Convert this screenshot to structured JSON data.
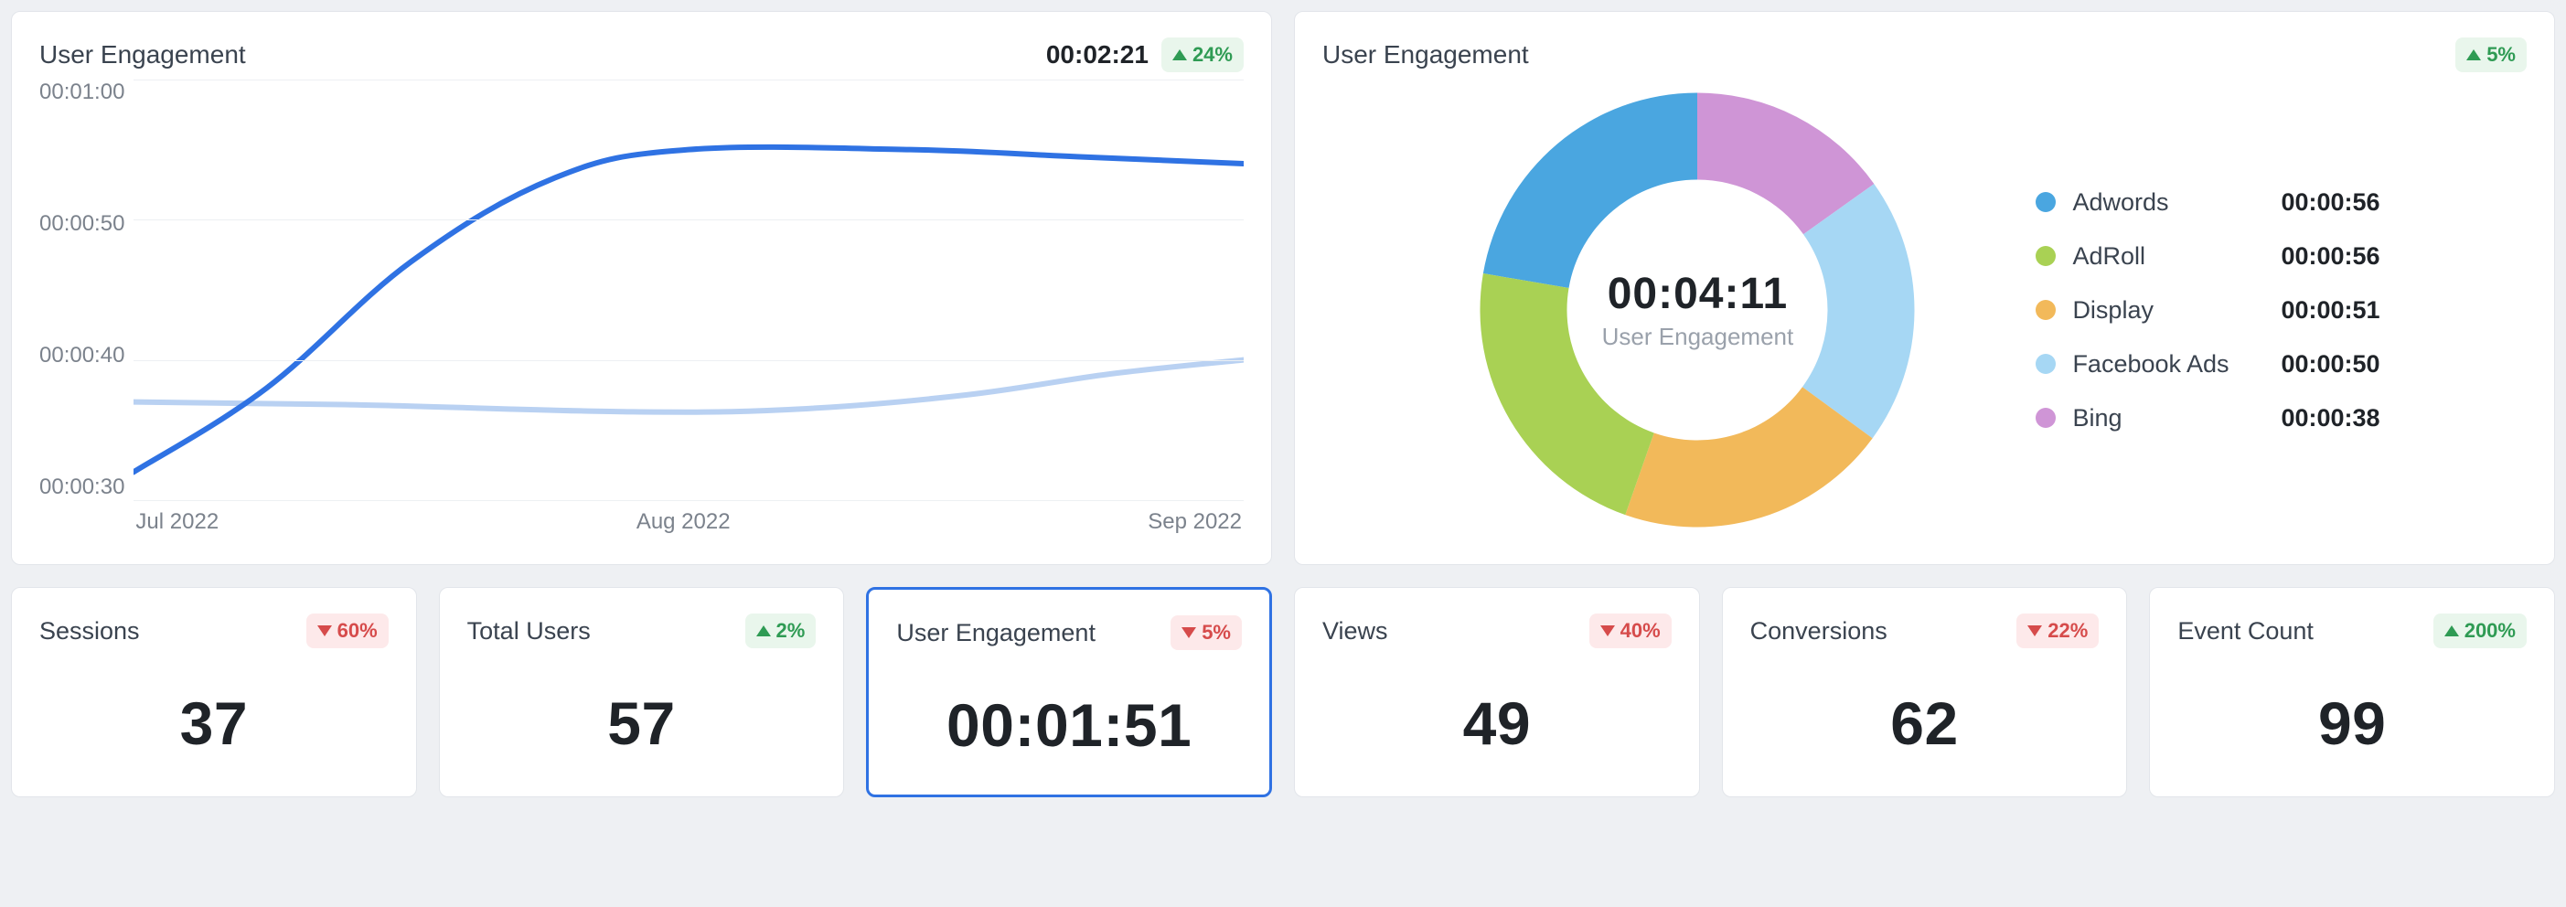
{
  "palette": {
    "background": "#eef0f3",
    "card_bg": "#ffffff",
    "card_border": "#e2e5ea",
    "text_primary": "#1f2328",
    "text_secondary": "#3a434f",
    "text_muted": "#7b828c",
    "gridline": "#edf0f3",
    "badge_up_bg": "#e9f6ec",
    "badge_up_fg": "#2f9b54",
    "badge_down_bg": "#fde9ea",
    "badge_down_fg": "#d64b4b",
    "selected_border": "#2f72e3"
  },
  "line_chart": {
    "title": "User Engagement",
    "head_value": "00:02:21",
    "badge": {
      "direction": "up",
      "text": "24%"
    },
    "y_ticks": [
      "00:01:00",
      "00:00:50",
      "00:00:40",
      "00:00:30"
    ],
    "y_range_seconds": [
      30,
      60
    ],
    "x_ticks": [
      "Jul 2022",
      "Aug 2022",
      "Sep 2022"
    ],
    "series": [
      {
        "name": "current",
        "color": "#2f72e3",
        "stroke_width": 6,
        "points": [
          {
            "x": 0.0,
            "y": 32
          },
          {
            "x": 0.12,
            "y": 38
          },
          {
            "x": 0.25,
            "y": 47
          },
          {
            "x": 0.38,
            "y": 53
          },
          {
            "x": 0.5,
            "y": 55
          },
          {
            "x": 0.7,
            "y": 55
          },
          {
            "x": 0.85,
            "y": 54.5
          },
          {
            "x": 1.0,
            "y": 54
          }
        ]
      },
      {
        "name": "previous",
        "color": "#b9d1f2",
        "stroke_width": 6,
        "points": [
          {
            "x": 0.0,
            "y": 37
          },
          {
            "x": 0.2,
            "y": 36.8
          },
          {
            "x": 0.45,
            "y": 36.3
          },
          {
            "x": 0.6,
            "y": 36.5
          },
          {
            "x": 0.75,
            "y": 37.5
          },
          {
            "x": 0.88,
            "y": 39
          },
          {
            "x": 1.0,
            "y": 40
          }
        ]
      }
    ]
  },
  "donut": {
    "title": "User Engagement",
    "badge": {
      "direction": "up",
      "text": "5%"
    },
    "center_value": "00:04:11",
    "center_label": "User Engagement",
    "inner_radius_ratio": 0.6,
    "segments": [
      {
        "label": "Adwords",
        "value": "00:00:56",
        "seconds": 56,
        "color": "#4aa6e0"
      },
      {
        "label": "AdRoll",
        "value": "00:00:56",
        "seconds": 56,
        "color": "#a9d154"
      },
      {
        "label": "Display",
        "value": "00:00:51",
        "seconds": 51,
        "color": "#f2b95a"
      },
      {
        "label": "Facebook Ads",
        "value": "00:00:50",
        "seconds": 50,
        "color": "#a6d7f4"
      },
      {
        "label": "Bing",
        "value": "00:00:38",
        "seconds": 38,
        "color": "#cf95d6"
      }
    ]
  },
  "kpis": [
    {
      "title": "Sessions",
      "value": "37",
      "badge": {
        "direction": "down",
        "text": "60%"
      },
      "selected": false
    },
    {
      "title": "Total Users",
      "value": "57",
      "badge": {
        "direction": "up",
        "text": "2%"
      },
      "selected": false
    },
    {
      "title": "User Engagement",
      "value": "00:01:51",
      "badge": {
        "direction": "down",
        "text": "5%"
      },
      "selected": true
    },
    {
      "title": "Views",
      "value": "49",
      "badge": {
        "direction": "down",
        "text": "40%"
      },
      "selected": false
    },
    {
      "title": "Conversions",
      "value": "62",
      "badge": {
        "direction": "down",
        "text": "22%"
      },
      "selected": false
    },
    {
      "title": "Event Count",
      "value": "99",
      "badge": {
        "direction": "up",
        "text": "200%"
      },
      "selected": false
    }
  ]
}
